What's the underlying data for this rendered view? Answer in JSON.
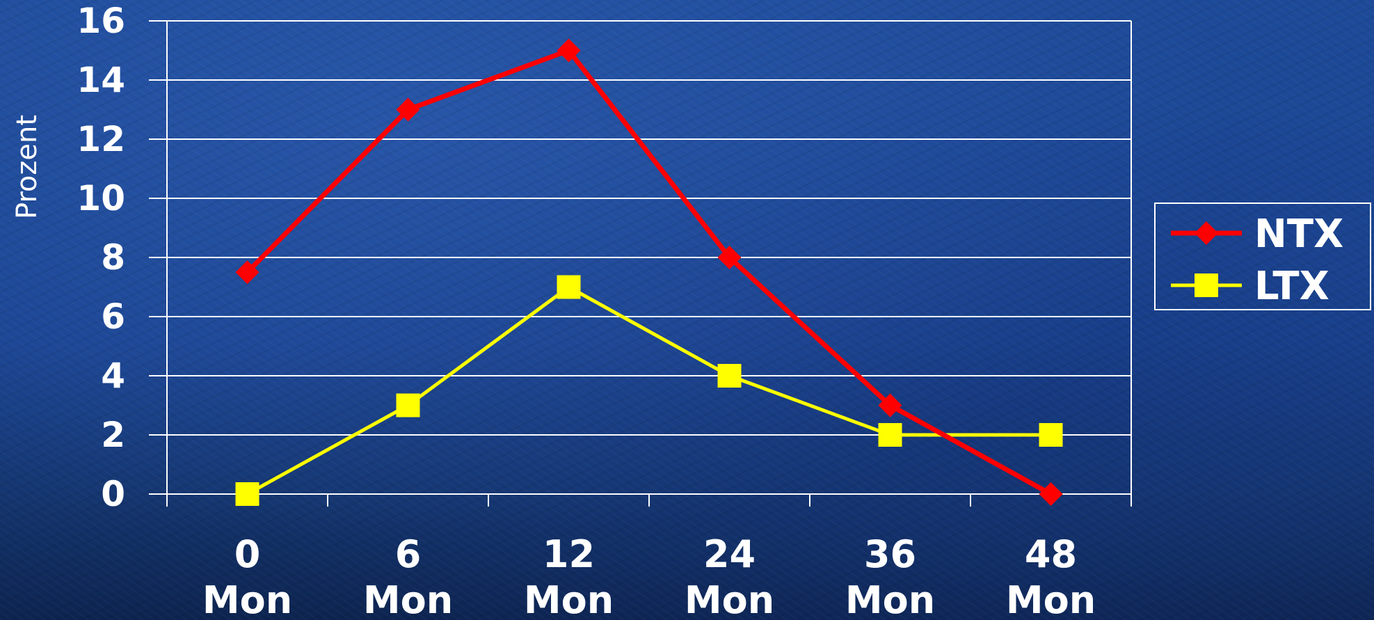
{
  "chart_data": {
    "type": "line",
    "title": "",
    "xlabel": "",
    "ylabel": "Prozent",
    "categories": [
      "0 Mon",
      "6 Mon",
      "12 Mon",
      "24 Mon",
      "36 Mon",
      "48 Mon"
    ],
    "category_lines": [
      [
        "0",
        "Mon"
      ],
      [
        "6",
        "Mon"
      ],
      [
        "12",
        "Mon"
      ],
      [
        "24",
        "Mon"
      ],
      [
        "36",
        "Mon"
      ],
      [
        "48",
        "Mon"
      ]
    ],
    "y_ticks": [
      "0",
      "2",
      "4",
      "6",
      "8",
      "10",
      "12",
      "14",
      "16"
    ],
    "ylim": [
      0,
      16
    ],
    "grid": true,
    "legend_position": "right",
    "series": [
      {
        "name": "NTX",
        "values": [
          7.5,
          13,
          15,
          8,
          3,
          0
        ],
        "color": "#ff0000",
        "marker": "diamond"
      },
      {
        "name": "LTX",
        "values": [
          0,
          3,
          7,
          4,
          2,
          2
        ],
        "color": "#ffff00",
        "marker": "square"
      }
    ]
  }
}
